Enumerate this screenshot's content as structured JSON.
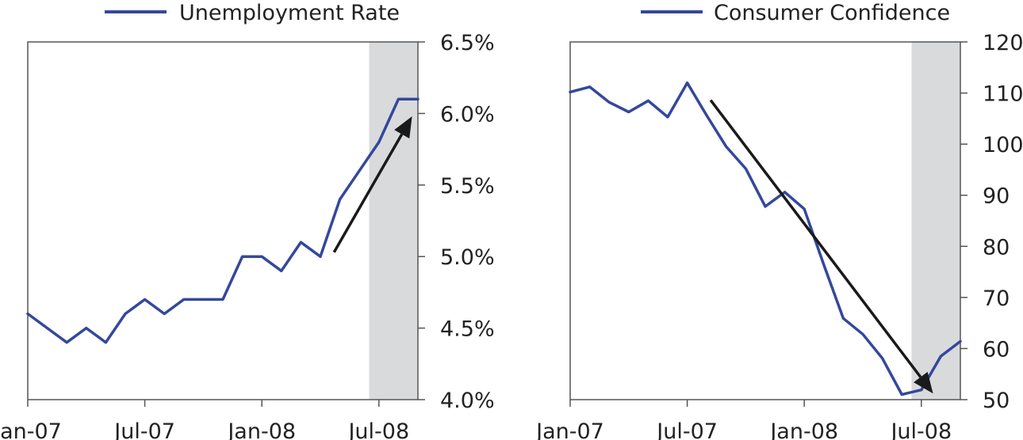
{
  "colors": {
    "series": "#34489b",
    "shade": "#d9dadc",
    "arrow": "#1a1a1a",
    "axis": "#555555",
    "text": "#222222"
  },
  "chart_data": [
    {
      "type": "line",
      "title": "",
      "xlabel": "",
      "ylabel": "",
      "legend": "top-center",
      "y_axis_side": "right",
      "x_tick_labels": [
        "Jan-07",
        "Jul-07",
        "Jan-08",
        "Jul-08"
      ],
      "x_tick_index": [
        0,
        6,
        12,
        18
      ],
      "ylim": [
        4.0,
        6.5
      ],
      "y_ticks": [
        4.0,
        4.5,
        5.0,
        5.5,
        6.0,
        6.5
      ],
      "y_tick_labels": [
        "4.0%",
        "4.5%",
        "5.0%",
        "5.5%",
        "6.0%",
        "6.5%"
      ],
      "shaded_region_index": [
        17.5,
        20
      ],
      "arrow": {
        "from": [
          15.7,
          5.03
        ],
        "to": [
          19.7,
          5.98
        ]
      },
      "series": [
        {
          "name": "Unemployment Rate",
          "x": [
            "Jan-07",
            "Feb-07",
            "Mar-07",
            "Apr-07",
            "May-07",
            "Jun-07",
            "Jul-07",
            "Aug-07",
            "Sep-07",
            "Oct-07",
            "Nov-07",
            "Dec-07",
            "Jan-08",
            "Feb-08",
            "Mar-08",
            "Apr-08",
            "May-08",
            "Jun-08",
            "Jul-08",
            "Aug-08",
            "Sep-08"
          ],
          "values": [
            4.6,
            4.5,
            4.4,
            4.5,
            4.4,
            4.6,
            4.7,
            4.6,
            4.7,
            4.7,
            4.7,
            5.0,
            5.0,
            4.9,
            5.1,
            5.0,
            5.4,
            5.6,
            5.8,
            6.1,
            6.1
          ]
        }
      ]
    },
    {
      "type": "line",
      "title": "",
      "xlabel": "",
      "ylabel": "",
      "legend": "top-center",
      "y_axis_side": "right",
      "x_tick_labels": [
        "Jan-07",
        "Jul-07",
        "Jan-08",
        "Jul-08"
      ],
      "x_tick_index": [
        0,
        6,
        12,
        18
      ],
      "ylim": [
        50,
        120
      ],
      "y_ticks": [
        50,
        60,
        70,
        80,
        90,
        100,
        110,
        120
      ],
      "y_tick_labels": [
        "50",
        "60",
        "70",
        "80",
        "90",
        "100",
        "110",
        "120"
      ],
      "shaded_region_index": [
        17.5,
        20
      ],
      "arrow": {
        "from": [
          7.2,
          108.6
        ],
        "to": [
          18.6,
          51.2
        ]
      },
      "series": [
        {
          "name": "Consumer Confidence",
          "x": [
            "Jan-07",
            "Feb-07",
            "Mar-07",
            "Apr-07",
            "May-07",
            "Jun-07",
            "Jul-07",
            "Aug-07",
            "Sep-07",
            "Oct-07",
            "Nov-07",
            "Dec-07",
            "Jan-08",
            "Feb-08",
            "Mar-08",
            "Apr-08",
            "May-08",
            "Jun-08",
            "Jul-08",
            "Aug-08",
            "Sep-08"
          ],
          "values": [
            110.2,
            111.2,
            108.2,
            106.3,
            108.5,
            105.3,
            112.0,
            105.6,
            99.5,
            95.2,
            87.8,
            90.6,
            87.3,
            76.4,
            65.9,
            62.8,
            58.1,
            51.0,
            51.9,
            58.5,
            61.4
          ]
        }
      ]
    }
  ]
}
